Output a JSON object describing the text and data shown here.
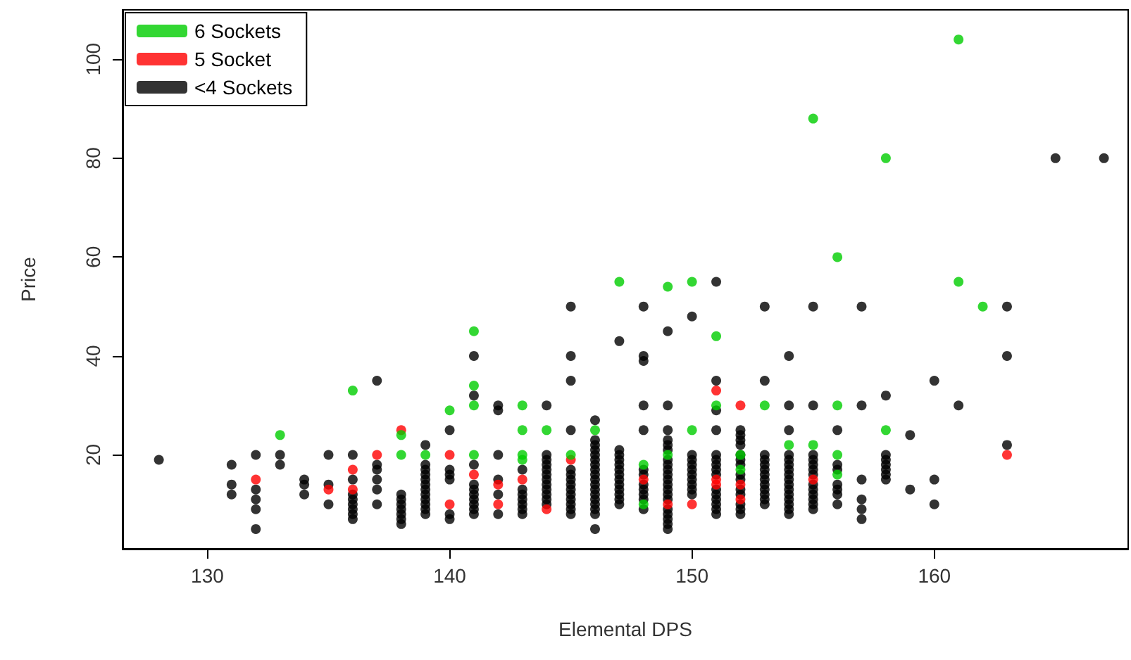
{
  "chart_data": {
    "type": "scatter",
    "xlabel": "Elemental DPS",
    "ylabel": "Price",
    "xlim": [
      126.5,
      168
    ],
    "xticks": [
      130,
      140,
      150,
      160
    ],
    "ylim": [
      1,
      110
    ],
    "yticks": [
      20,
      40,
      60,
      80,
      100
    ],
    "grid": false,
    "legend": "top left",
    "marker": "circle",
    "series": [
      {
        "name": "6 Sockets",
        "color": "#00cd00",
        "x": [
          133,
          136,
          138,
          138,
          139,
          140,
          141,
          141,
          141,
          141,
          143,
          143,
          143,
          143,
          144,
          145,
          146,
          147,
          148,
          148,
          149,
          149,
          150,
          150,
          151,
          151,
          152,
          152,
          153,
          154,
          155,
          155,
          156,
          156,
          156,
          156,
          158,
          158,
          161,
          161,
          162
        ],
        "values": [
          24,
          33,
          24,
          20,
          20,
          29,
          45,
          34,
          30,
          20,
          30,
          25,
          20,
          19,
          25,
          20,
          25,
          55,
          18,
          10,
          54,
          20,
          55,
          25,
          44,
          30,
          20,
          17,
          30,
          22,
          88,
          22,
          60,
          30,
          20,
          16,
          80,
          25,
          104,
          55,
          50
        ]
      },
      {
        "name": "5 Socket",
        "color": "#ff0000",
        "x": [
          132,
          135,
          136,
          136,
          137,
          138,
          140,
          140,
          141,
          142,
          142,
          143,
          144,
          145,
          148,
          149,
          150,
          151,
          151,
          151,
          152,
          152,
          152,
          155,
          163
        ],
        "values": [
          15,
          13,
          17,
          13,
          20,
          25,
          20,
          10,
          16,
          14,
          10,
          15,
          9,
          19,
          15,
          10,
          10,
          33,
          15,
          14,
          30,
          14,
          11,
          15,
          20
        ]
      },
      {
        "name": "<4 Sockets",
        "color": "#000000",
        "x": [
          128,
          131,
          131,
          131,
          132,
          132,
          132,
          132,
          132,
          133,
          133,
          134,
          134,
          134,
          135,
          135,
          135,
          136,
          136,
          136,
          136,
          136,
          136,
          136,
          136,
          137,
          137,
          137,
          137,
          137,
          137,
          138,
          138,
          138,
          138,
          138,
          138,
          138,
          139,
          139,
          139,
          139,
          139,
          139,
          139,
          139,
          139,
          139,
          139,
          139,
          140,
          140,
          140,
          140,
          140,
          140,
          141,
          141,
          141,
          141,
          141,
          141,
          141,
          141,
          141,
          141,
          142,
          142,
          142,
          142,
          142,
          142,
          143,
          143,
          143,
          143,
          143,
          143,
          143,
          144,
          144,
          144,
          144,
          144,
          144,
          144,
          144,
          144,
          144,
          144,
          144,
          145,
          145,
          145,
          145,
          145,
          145,
          145,
          145,
          145,
          145,
          145,
          145,
          145,
          145,
          146,
          146,
          146,
          146,
          146,
          146,
          146,
          146,
          146,
          146,
          146,
          146,
          146,
          146,
          146,
          146,
          146,
          146,
          147,
          147,
          147,
          147,
          147,
          147,
          147,
          147,
          147,
          147,
          147,
          147,
          147,
          148,
          148,
          148,
          148,
          148,
          148,
          148,
          148,
          148,
          148,
          148,
          148,
          149,
          149,
          149,
          149,
          149,
          149,
          149,
          149,
          149,
          149,
          149,
          149,
          149,
          149,
          149,
          149,
          149,
          149,
          149,
          149,
          150,
          150,
          150,
          150,
          150,
          150,
          150,
          150,
          150,
          150,
          151,
          151,
          151,
          151,
          151,
          151,
          151,
          151,
          151,
          151,
          151,
          151,
          151,
          151,
          151,
          152,
          152,
          152,
          152,
          152,
          152,
          152,
          152,
          152,
          152,
          152,
          152,
          152,
          152,
          153,
          153,
          153,
          153,
          153,
          153,
          153,
          153,
          153,
          153,
          153,
          153,
          153,
          154,
          154,
          154,
          154,
          154,
          154,
          154,
          154,
          154,
          154,
          154,
          154,
          154,
          154,
          154,
          154,
          155,
          155,
          155,
          155,
          155,
          155,
          155,
          155,
          155,
          155,
          155,
          155,
          155,
          156,
          156,
          156,
          156,
          156,
          156,
          156,
          157,
          157,
          157,
          157,
          157,
          157,
          158,
          158,
          158,
          158,
          158,
          158,
          158,
          159,
          159,
          160,
          160,
          160,
          161,
          163,
          163,
          163,
          165,
          167
        ],
        "values": [
          19,
          18,
          14,
          12,
          20,
          13,
          11,
          9,
          5,
          20,
          18,
          15,
          14,
          12,
          20,
          14,
          10,
          20,
          15,
          12,
          11,
          10,
          9,
          8,
          7,
          35,
          18,
          17,
          15,
          13,
          10,
          12,
          11,
          10,
          9,
          8,
          7,
          6,
          22,
          18,
          17,
          16,
          15,
          14,
          13,
          12,
          11,
          10,
          9,
          8,
          25,
          17,
          16,
          15,
          8,
          7,
          40,
          32,
          18,
          14,
          13,
          12,
          11,
          10,
          9,
          8,
          30,
          29,
          20,
          15,
          12,
          8,
          17,
          13,
          12,
          11,
          10,
          9,
          8,
          30,
          20,
          19,
          18,
          17,
          16,
          15,
          14,
          13,
          12,
          11,
          10,
          50,
          40,
          35,
          25,
          17,
          16,
          15,
          14,
          13,
          12,
          11,
          10,
          9,
          8,
          27,
          23,
          22,
          21,
          20,
          19,
          18,
          17,
          16,
          15,
          14,
          13,
          12,
          11,
          10,
          9,
          8,
          5,
          43,
          21,
          20,
          19,
          18,
          17,
          16,
          15,
          14,
          13,
          12,
          11,
          10,
          50,
          40,
          39,
          30,
          25,
          17,
          16,
          14,
          13,
          12,
          11,
          9,
          45,
          30,
          25,
          23,
          22,
          21,
          19,
          18,
          17,
          16,
          15,
          14,
          13,
          12,
          11,
          9,
          8,
          7,
          6,
          5,
          48,
          20,
          19,
          18,
          17,
          16,
          15,
          14,
          13,
          12,
          55,
          35,
          29,
          25,
          20,
          19,
          18,
          17,
          16,
          13,
          12,
          11,
          10,
          9,
          8,
          25,
          24,
          23,
          22,
          20,
          19,
          18,
          16,
          15,
          13,
          12,
          10,
          9,
          8,
          50,
          35,
          20,
          19,
          18,
          17,
          16,
          15,
          14,
          13,
          12,
          11,
          10,
          40,
          30,
          25,
          20,
          19,
          18,
          17,
          16,
          15,
          14,
          13,
          12,
          11,
          10,
          9,
          8,
          50,
          30,
          20,
          19,
          18,
          17,
          16,
          14,
          13,
          12,
          11,
          10,
          9,
          25,
          18,
          17,
          14,
          13,
          12,
          10,
          50,
          30,
          15,
          11,
          9,
          7,
          32,
          20,
          19,
          18,
          17,
          16,
          15,
          24,
          13,
          35,
          15,
          10,
          30,
          50,
          40,
          22,
          80,
          80
        ]
      }
    ]
  }
}
